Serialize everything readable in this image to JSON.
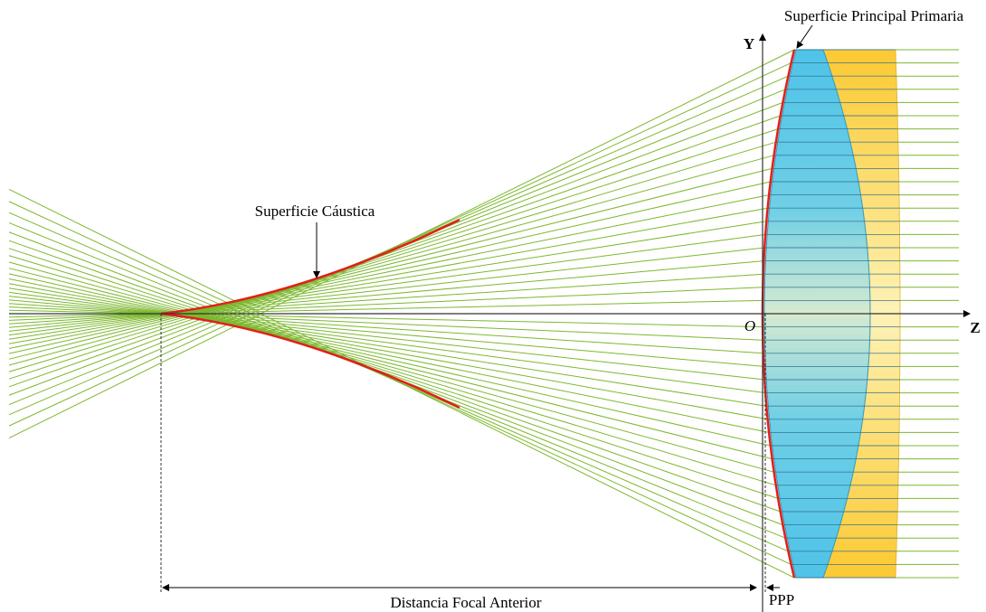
{
  "labels": {
    "principal_surface": "Superficie Principal Primaria",
    "caustic": "Superficie Cáustica",
    "y_axis": "Y",
    "z_axis": "Z",
    "origin": "O",
    "focal_distance": "Distancia Focal Anterior",
    "ppp": "PPP"
  }
}
